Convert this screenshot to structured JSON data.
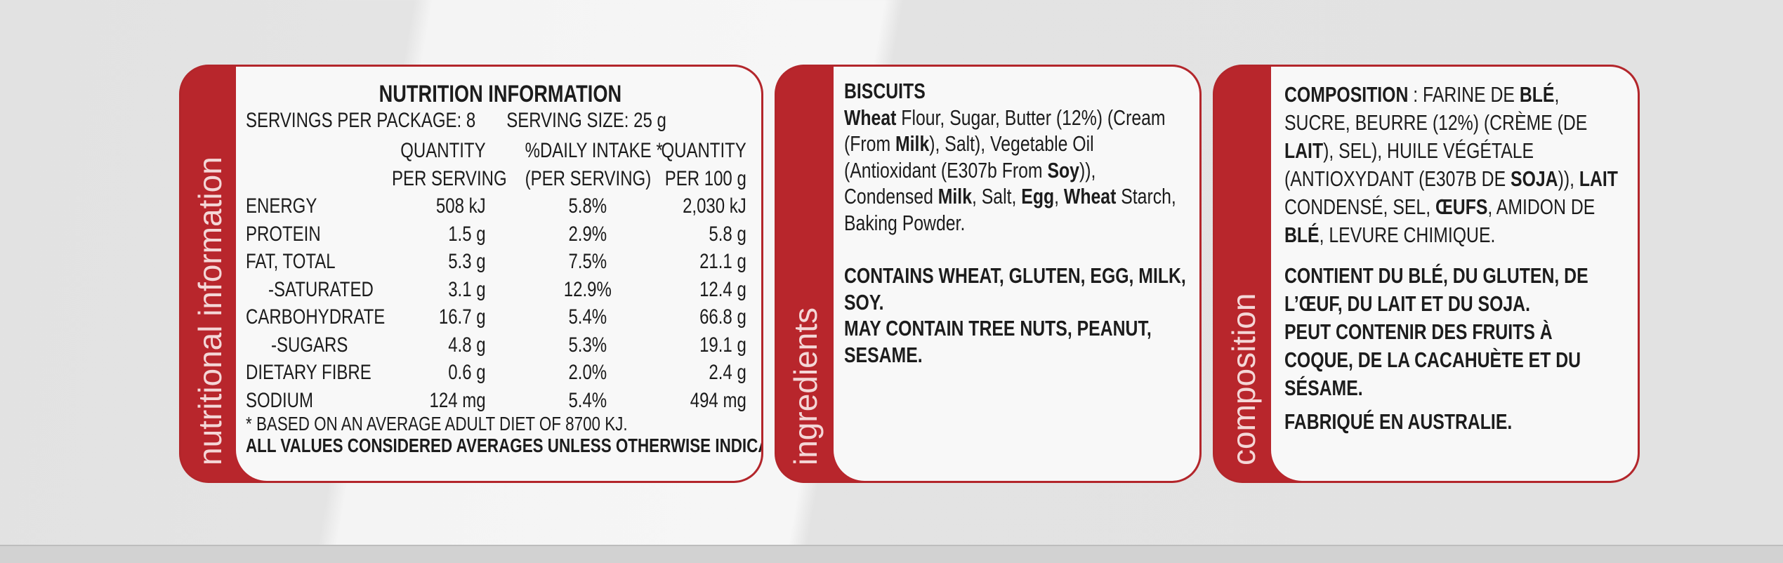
{
  "colors": {
    "accent_red": "#b8262c",
    "label_text": "#f4d7d7",
    "panel_bg": "#f8f8f8"
  },
  "nutrition": {
    "side_label": "nutritional information",
    "title": "NUTRITION INFORMATION",
    "servings_per_package": "SERVINGS PER PACKAGE: 8",
    "serving_size": "SERVING SIZE: 25 g",
    "headers": [
      [
        "",
        "QUANTITY",
        "%DAILY INTAKE *",
        "QUANTITY"
      ],
      [
        "",
        "PER SERVING",
        "(PER SERVING)",
        "PER 100 g"
      ]
    ],
    "rows": [
      [
        "ENERGY",
        "508 kJ",
        "5.8%",
        "2,030 kJ"
      ],
      [
        "PROTEIN",
        "1.5 g",
        "2.9%",
        "5.8 g"
      ],
      [
        "FAT, TOTAL",
        "5.3 g",
        "7.5%",
        "21.1 g"
      ],
      [
        "-SATURATED",
        "3.1 g",
        "12.9%",
        "12.4 g"
      ],
      [
        "CARBOHYDRATE",
        "16.7 g",
        "5.4%",
        "66.8 g"
      ],
      [
        "-SUGARS",
        "4.8 g",
        "5.3%",
        "19.1 g"
      ],
      [
        "DIETARY FIBRE",
        "0.6 g",
        "2.0%",
        "2.4 g"
      ],
      [
        "SODIUM",
        "124 mg",
        "5.4%",
        "494 mg"
      ]
    ],
    "footnote": "* BASED ON AN AVERAGE ADULT DIET OF 8700 KJ.",
    "averages_note": "ALL VALUES CONSIDERED AVERAGES UNLESS OTHERWISE INDICATED"
  },
  "ingredients": {
    "side_label": "ingredients",
    "blocks": [
      [
        {
          "t": "BISCUITS",
          "b": true
        }
      ],
      [
        {
          "t": "Wheat",
          "b": true
        },
        {
          "t": " Flour, Sugar, Butter (12%) (Cream (From "
        },
        {
          "t": "Milk",
          "b": true
        },
        {
          "t": "), Salt), Vegetable Oil (Antioxidant (E307b From "
        },
        {
          "t": "Soy",
          "b": true
        },
        {
          "t": ")), Condensed "
        },
        {
          "t": "Milk",
          "b": true
        },
        {
          "t": ", Salt, "
        },
        {
          "t": "Egg",
          "b": true
        },
        {
          "t": ", "
        },
        {
          "t": "Wheat",
          "b": true
        },
        {
          "t": " Starch, Baking Powder."
        }
      ],
      [
        {
          "t": "CONTAINS WHEAT, GLUTEN, EGG, MILK, SOY.",
          "b": true
        }
      ],
      [
        {
          "t": "MAY CONTAIN TREE NUTS, PEANUT, SESAME.",
          "b": true
        }
      ]
    ]
  },
  "composition": {
    "side_label": "composition",
    "blocks": [
      [
        {
          "t": "COMPOSITION",
          "b": true
        },
        {
          "t": " : FARINE DE "
        },
        {
          "t": "BLÉ",
          "b": true
        },
        {
          "t": ", SUCRE, BEURRE (12%) (CRÈME (DE "
        },
        {
          "t": "LAIT",
          "b": true
        },
        {
          "t": "), SEL), HUILE VÉGÉTALE (ANTIOXYDANT (E307B DE "
        },
        {
          "t": "SOJA",
          "b": true
        },
        {
          "t": ")), "
        },
        {
          "t": "LAIT",
          "b": true
        },
        {
          "t": " CONDENSÉ, SEL, "
        },
        {
          "t": "ŒUFS",
          "b": true
        },
        {
          "t": ", AMIDON DE "
        },
        {
          "t": "BLÉ",
          "b": true
        },
        {
          "t": ", LEVURE CHIMIQUE."
        }
      ],
      [
        {
          "t": "CONTIENT DU BLÉ, DU GLUTEN, DE L’ŒUF, DU LAIT ET DU SOJA.",
          "b": true
        }
      ],
      [
        {
          "t": "PEUT CONTENIR DES FRUITS À COQUE, DE LA CACAHUÈTE ET DU SÉSAME.",
          "b": true
        }
      ],
      [
        {
          "t": "FABRIQUÉ EN AUSTRALIE.",
          "b": true
        }
      ]
    ]
  }
}
